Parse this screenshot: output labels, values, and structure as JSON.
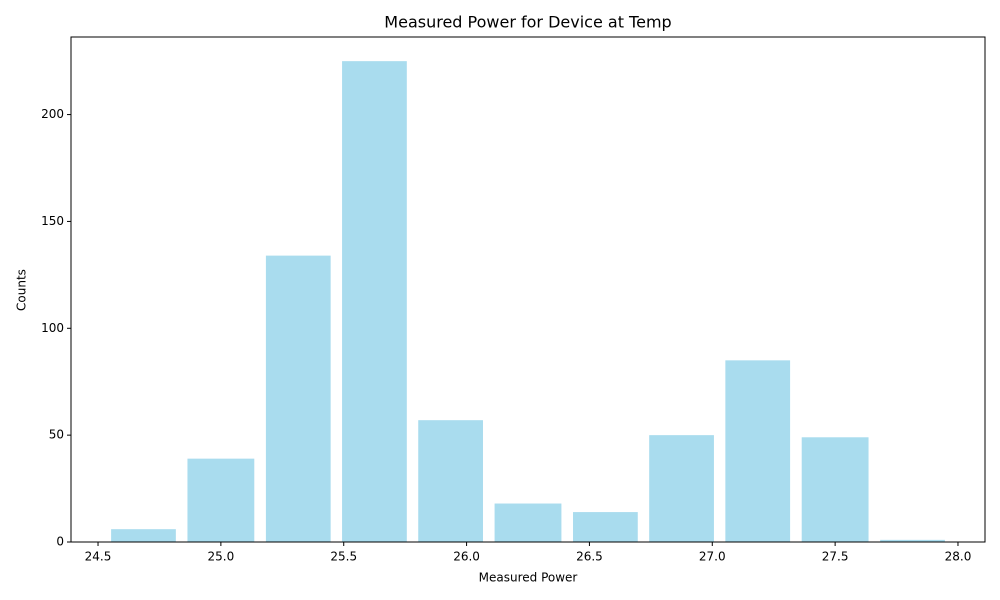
{
  "chart_data": {
    "type": "histogram",
    "title": "Measured Power for Device at Temp",
    "x_label": "Measured Power",
    "y_label": "Counts",
    "bins": [
      24.53,
      24.84,
      25.16,
      25.47,
      25.78,
      26.09,
      26.41,
      26.72,
      27.03,
      27.34,
      27.66,
      27.97
    ],
    "values": [
      6,
      39,
      134,
      225,
      57,
      18,
      14,
      50,
      85,
      49,
      1
    ],
    "color": "#a9dcee",
    "xlim": [
      24.39,
      28.11
    ],
    "ylim": [
      0,
      236.3
    ],
    "xticks": [
      24.5,
      {
        "value": 25.0,
        "label": "25.0"
      },
      25.5,
      {
        "value": 26.0,
        "label": "26.0"
      },
      26.5,
      {
        "value": 27.0,
        "label": "27.0"
      },
      27.5,
      {
        "value": 28.0,
        "label": "28.0"
      }
    ],
    "yticks": [
      0,
      50,
      100,
      150,
      200
    ],
    "grid": false
  }
}
